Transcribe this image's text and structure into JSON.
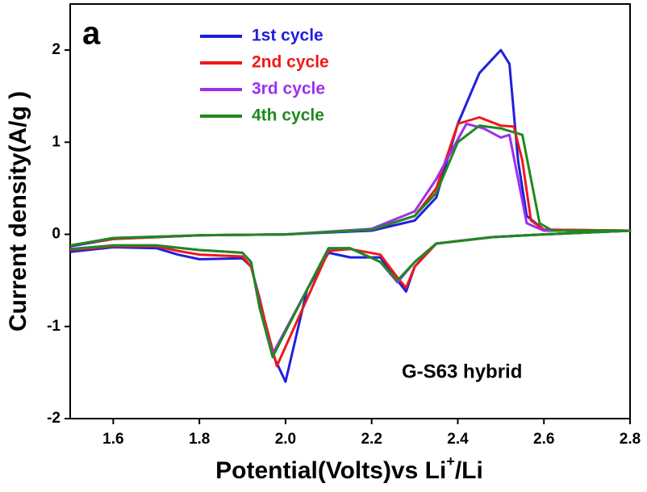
{
  "chart_data": {
    "type": "line",
    "panel_label": "a",
    "annotation": "G-S63 hybrid",
    "x_label": {
      "main": "Potential(Volts)vs Li",
      "sup": "+",
      "tail": "/Li"
    },
    "y_label": "Current density(A/g )",
    "xlim": [
      1.5,
      2.8
    ],
    "ylim": [
      -2,
      2.5
    ],
    "xticks": [
      1.6,
      1.8,
      {
        "value": 2,
        "label": "2.0"
      },
      2.2,
      2.4,
      2.6,
      2.8
    ],
    "yticks": [
      -2,
      -1,
      0,
      1,
      2
    ],
    "series": [
      {
        "name": "1st cycle",
        "color": "#1f1fe0",
        "x": [
          1.5,
          1.6,
          1.8,
          2.0,
          2.2,
          2.3,
          2.35,
          2.4,
          2.45,
          2.5,
          2.52,
          2.54,
          2.56,
          2.6,
          2.8,
          2.6,
          2.48,
          2.35,
          2.3,
          2.28,
          2.26,
          2.22,
          2.15,
          2.1,
          2.05,
          2.0,
          1.97,
          1.94,
          1.92,
          1.9,
          1.8,
          1.75,
          1.7,
          1.6,
          1.5
        ],
        "values": [
          -0.13,
          -0.05,
          -0.01,
          0.0,
          0.04,
          0.15,
          0.4,
          1.2,
          1.75,
          2.0,
          1.85,
          0.8,
          0.2,
          0.05,
          0.04,
          0.0,
          -0.03,
          -0.1,
          -0.35,
          -0.62,
          -0.5,
          -0.25,
          -0.25,
          -0.2,
          -0.6,
          -1.6,
          -1.3,
          -0.7,
          -0.35,
          -0.26,
          -0.27,
          -0.22,
          -0.15,
          -0.14,
          -0.19
        ]
      },
      {
        "name": "2nd cycle",
        "color": "#f01818",
        "x": [
          1.5,
          1.6,
          1.8,
          2.0,
          2.2,
          2.3,
          2.35,
          2.4,
          2.45,
          2.5,
          2.53,
          2.55,
          2.57,
          2.6,
          2.8,
          2.6,
          2.48,
          2.35,
          2.3,
          2.28,
          2.26,
          2.22,
          2.15,
          2.1,
          2.05,
          1.98,
          1.95,
          1.92,
          1.9,
          1.8,
          1.75,
          1.7,
          1.6,
          1.5
        ],
        "values": [
          -0.12,
          -0.05,
          -0.01,
          0.0,
          0.05,
          0.2,
          0.5,
          1.2,
          1.27,
          1.18,
          1.17,
          0.8,
          0.15,
          0.05,
          0.04,
          0.0,
          -0.03,
          -0.1,
          -0.35,
          -0.58,
          -0.47,
          -0.22,
          -0.16,
          -0.18,
          -0.7,
          -1.43,
          -0.9,
          -0.35,
          -0.24,
          -0.22,
          -0.18,
          -0.13,
          -0.13,
          -0.17
        ]
      },
      {
        "name": "3rd cycle",
        "color": "#9b30f0",
        "x": [
          1.5,
          1.6,
          1.8,
          2.0,
          2.2,
          2.3,
          2.35,
          2.42,
          2.46,
          2.5,
          2.52,
          2.54,
          2.56,
          2.6,
          2.8,
          2.6,
          2.48,
          2.35,
          2.3,
          2.26,
          2.22,
          2.15,
          2.1,
          2.05,
          1.97,
          1.94,
          1.92,
          1.9,
          1.8,
          1.7,
          1.6,
          1.5
        ],
        "values": [
          -0.12,
          -0.04,
          -0.01,
          0.0,
          0.06,
          0.25,
          0.6,
          1.2,
          1.15,
          1.05,
          1.08,
          0.6,
          0.12,
          0.04,
          0.04,
          0.0,
          -0.03,
          -0.1,
          -0.3,
          -0.52,
          -0.3,
          -0.15,
          -0.15,
          -0.6,
          -1.3,
          -0.8,
          -0.3,
          -0.2,
          -0.17,
          -0.12,
          -0.12,
          -0.16
        ]
      },
      {
        "name": "4th cycle",
        "color": "#1e8a1e",
        "x": [
          1.5,
          1.6,
          1.8,
          2.0,
          2.2,
          2.3,
          2.35,
          2.4,
          2.45,
          2.5,
          2.55,
          2.57,
          2.59,
          2.62,
          2.8,
          2.6,
          2.48,
          2.35,
          2.3,
          2.26,
          2.22,
          2.15,
          2.1,
          2.05,
          1.97,
          1.94,
          1.92,
          1.9,
          1.8,
          1.7,
          1.6,
          1.5
        ],
        "values": [
          -0.12,
          -0.04,
          -0.01,
          0.0,
          0.05,
          0.2,
          0.45,
          1.0,
          1.18,
          1.15,
          1.08,
          0.6,
          0.12,
          0.04,
          0.04,
          0.0,
          -0.03,
          -0.1,
          -0.3,
          -0.5,
          -0.3,
          -0.15,
          -0.15,
          -0.6,
          -1.33,
          -0.8,
          -0.3,
          -0.2,
          -0.17,
          -0.12,
          -0.12,
          -0.16
        ]
      }
    ]
  }
}
